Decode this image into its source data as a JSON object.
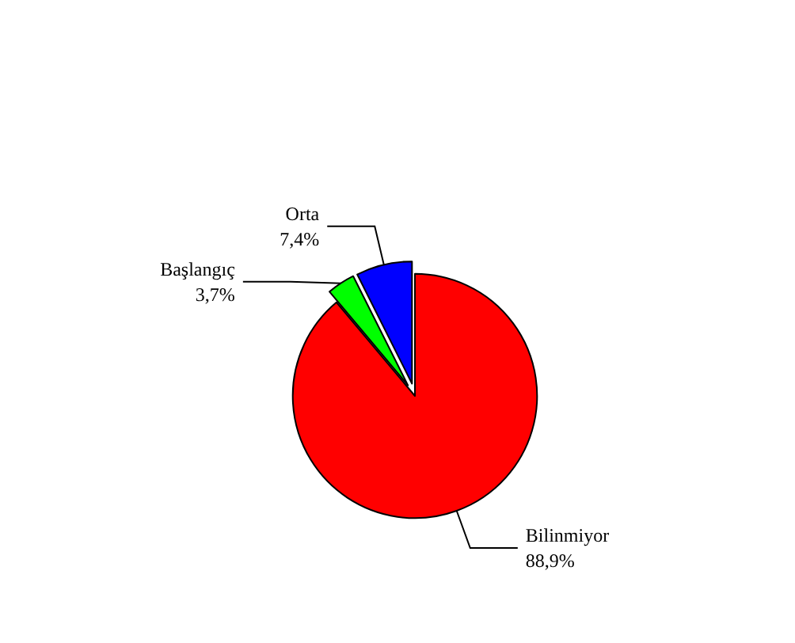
{
  "chart_data": {
    "type": "pie",
    "categories": [
      "Bilinmiyor",
      "Başlangıç",
      "Orta"
    ],
    "values": [
      88.9,
      3.7,
      7.4
    ],
    "colors": [
      "#ff0000",
      "#00ff00",
      "#0000ff"
    ],
    "value_labels": [
      "88,9%",
      "3,7%",
      "7,4%"
    ],
    "legend": false
  }
}
